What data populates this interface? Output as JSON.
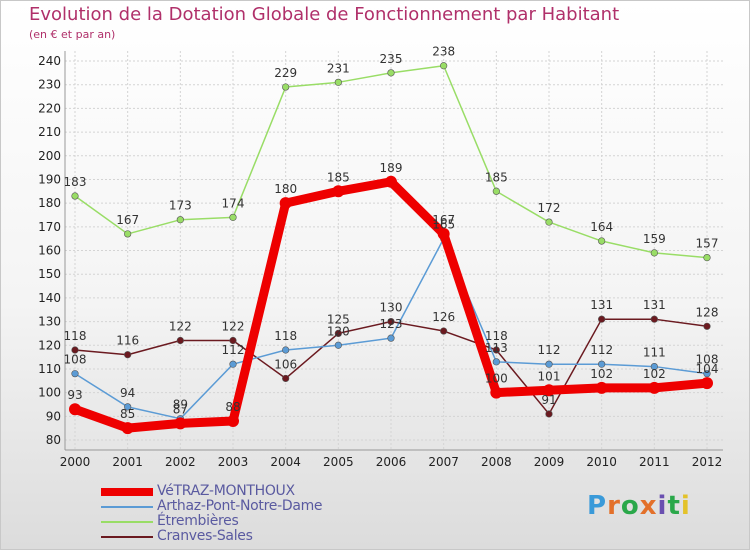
{
  "title": "Evolution de la Dotation Globale de Fonctionnement par Habitant",
  "subtitle": "(en € et par an)",
  "brand": "Proxiti",
  "chart_data": {
    "type": "line",
    "title": "Evolution de la Dotation Globale de Fonctionnement par Habitant",
    "subtitle": "(en € et par an)",
    "xlabel": "",
    "ylabel": "",
    "categories": [
      "2000",
      "2001",
      "2002",
      "2003",
      "2004",
      "2005",
      "2006",
      "2007",
      "2008",
      "2009",
      "2010",
      "2011",
      "2012"
    ],
    "ylim": [
      80,
      240
    ],
    "yticks": [
      80,
      90,
      100,
      110,
      120,
      130,
      140,
      150,
      160,
      170,
      180,
      190,
      200,
      210,
      220,
      230,
      240
    ],
    "grid": true,
    "legend_position": "bottom-left",
    "series": [
      {
        "name": "VéTRAZ-MONTHOUX",
        "color": "#ee0000",
        "values": [
          93,
          85,
          87,
          88,
          180,
          185,
          189,
          167,
          100,
          101,
          102,
          102,
          104
        ]
      },
      {
        "name": "Arthaz-Pont-Notre-Dame",
        "color": "#5b9bd5",
        "values": [
          108,
          94,
          89,
          112,
          118,
          120,
          123,
          165,
          113,
          112,
          112,
          111,
          108
        ]
      },
      {
        "name": "Étrembières",
        "color": "#99dd66",
        "values": [
          183,
          167,
          173,
          174,
          229,
          231,
          235,
          238,
          185,
          172,
          164,
          159,
          157
        ]
      },
      {
        "name": "Cranves-Sales",
        "color": "#6b1a20",
        "values": [
          118,
          116,
          122,
          122,
          106,
          125,
          130,
          126,
          118,
          91,
          131,
          131,
          128
        ]
      }
    ]
  }
}
